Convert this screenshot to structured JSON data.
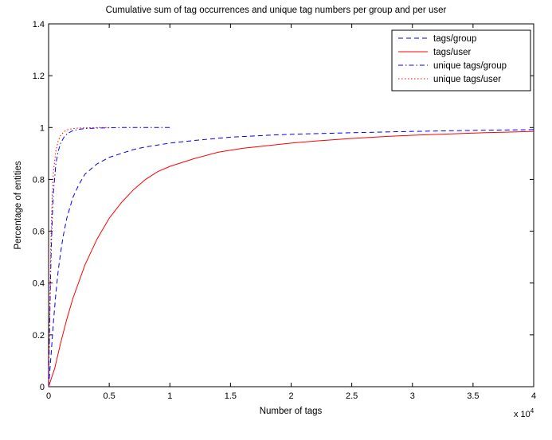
{
  "chart_data": {
    "type": "line",
    "title": "Cumulative sum of tag occurrences and unique tag numbers per group and per user",
    "xlabel": "Number of tags",
    "ylabel": "Percentage of entities",
    "x_multiplier_label": "x 10^4",
    "xlim": [
      0,
      40000
    ],
    "ylim": [
      0,
      1.4
    ],
    "xticks": [
      0,
      5000,
      10000,
      15000,
      20000,
      25000,
      30000,
      35000,
      40000
    ],
    "xtick_labels": [
      "0",
      "0.5",
      "1",
      "1.5",
      "2",
      "2.5",
      "3",
      "3.5",
      "4"
    ],
    "yticks": [
      0,
      0.2,
      0.4,
      0.6,
      0.8,
      1.0,
      1.2,
      1.4
    ],
    "ytick_labels": [
      "0",
      "0.2",
      "0.4",
      "0.6",
      "0.8",
      "1",
      "1.2",
      "1.4"
    ],
    "grid": false,
    "legend_position": "top-right",
    "series": [
      {
        "name": "tags/group",
        "color": "#0000ff",
        "dash": "dashed",
        "x": [
          0,
          200,
          400,
          600,
          800,
          1000,
          1200,
          1500,
          2000,
          2500,
          3000,
          4000,
          5000,
          6000,
          7000,
          8000,
          10000,
          12000,
          15000,
          18000,
          20000,
          25000,
          30000,
          35000,
          40000
        ],
        "y": [
          0,
          0.12,
          0.25,
          0.36,
          0.45,
          0.52,
          0.58,
          0.65,
          0.73,
          0.78,
          0.82,
          0.86,
          0.885,
          0.9,
          0.915,
          0.925,
          0.94,
          0.95,
          0.963,
          0.97,
          0.974,
          0.98,
          0.985,
          0.989,
          0.992
        ]
      },
      {
        "name": "tags/user",
        "color": "#ff0000",
        "dash": "solid",
        "x": [
          0,
          500,
          1000,
          1500,
          2000,
          3000,
          4000,
          5000,
          6000,
          7000,
          8000,
          9000,
          10000,
          12000,
          14000,
          16000,
          18000,
          20000,
          22000,
          25000,
          28000,
          30000,
          33000,
          36000,
          40000
        ],
        "y": [
          0,
          0.07,
          0.17,
          0.26,
          0.34,
          0.47,
          0.57,
          0.65,
          0.71,
          0.76,
          0.8,
          0.83,
          0.85,
          0.88,
          0.905,
          0.92,
          0.93,
          0.94,
          0.948,
          0.958,
          0.966,
          0.97,
          0.975,
          0.98,
          0.985
        ]
      },
      {
        "name": "unique tags/group",
        "color": "#0000ff",
        "dash": "dashdot",
        "x": [
          0,
          100,
          200,
          300,
          400,
          600,
          800,
          1000,
          1300,
          1600,
          2000,
          2500,
          3000,
          4000,
          5000,
          6000,
          8000,
          10000
        ],
        "y": [
          0,
          0.27,
          0.5,
          0.65,
          0.75,
          0.86,
          0.91,
          0.94,
          0.965,
          0.978,
          0.988,
          0.993,
          0.996,
          0.998,
          0.999,
          1.0,
          1.0,
          1.0
        ]
      },
      {
        "name": "unique tags/user",
        "color": "#ff0000",
        "dash": "dotted",
        "x": [
          0,
          100,
          200,
          300,
          400,
          600,
          800,
          1000,
          1300,
          1600,
          2000,
          2500,
          3000,
          4000,
          5000
        ],
        "y": [
          0,
          0.32,
          0.58,
          0.74,
          0.83,
          0.91,
          0.95,
          0.97,
          0.985,
          0.992,
          0.996,
          0.998,
          0.999,
          1.0,
          1.0
        ]
      }
    ]
  }
}
